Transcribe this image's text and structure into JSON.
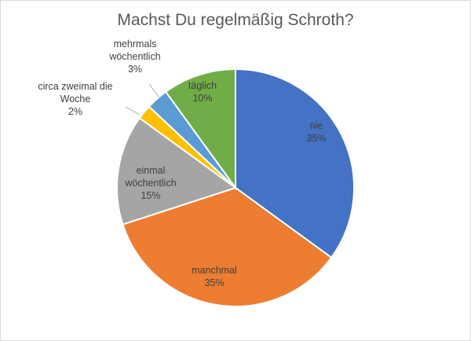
{
  "chart_data": {
    "type": "pie",
    "title": "Machst Du regelmäßig Schroth?",
    "slices": [
      {
        "label": "nie",
        "percent_label": "35%",
        "value": 35,
        "color": "#4472C4"
      },
      {
        "label": "manchmal",
        "percent_label": "35%",
        "value": 35,
        "color": "#ED7D31"
      },
      {
        "label": "einmal wöchentlich",
        "label_lines": [
          "einmal",
          "wöchentlich"
        ],
        "percent_label": "15%",
        "value": 15,
        "color": "#A5A5A5"
      },
      {
        "label": "circa zweimal die Woche",
        "label_lines": [
          "circa zweimal die",
          "Woche"
        ],
        "percent_label": "2%",
        "value": 2,
        "color": "#FFC000"
      },
      {
        "label": "mehrmals wöchentlich",
        "label_lines": [
          "mehrmals",
          "wöchentlich"
        ],
        "percent_label": "3%",
        "value": 3,
        "color": "#5B9BD5"
      },
      {
        "label": "täglich",
        "percent_label": "10%",
        "value": 10,
        "color": "#70AD47"
      }
    ],
    "start_angle": "12 o'clock",
    "direction": "clockwise",
    "legend": "none"
  }
}
